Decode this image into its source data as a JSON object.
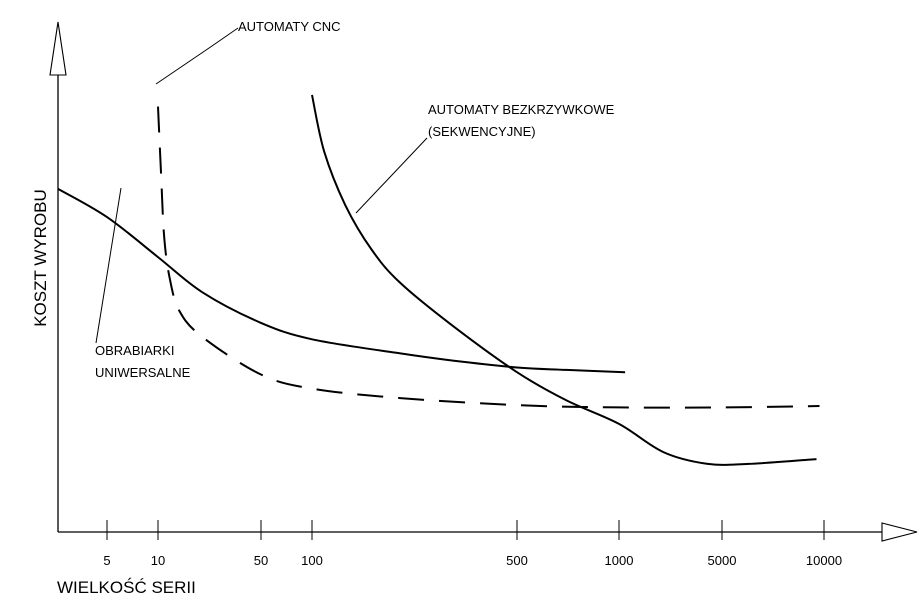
{
  "chart_data": {
    "type": "line",
    "xlabel": "WIELKOŚĆ SERII",
    "ylabel": "KOSZT WYROBU",
    "x_ticks": [
      "5",
      "10",
      "50",
      "100",
      "500",
      "1000",
      "5000",
      "10000"
    ],
    "x_tick_values": [
      5,
      10,
      50,
      100,
      500,
      1000,
      5000,
      10000
    ],
    "series": [
      {
        "name": "OBRABIARKI UNIWERSALNE",
        "style": "solid",
        "x": [
          2.5,
          5,
          10,
          20,
          50,
          100,
          200,
          300,
          500,
          700,
          1100
        ],
        "y": [
          0.73,
          0.67,
          0.585,
          0.51,
          0.445,
          0.41,
          0.38,
          0.365,
          0.35,
          0.345,
          0.34
        ]
      },
      {
        "name": "AUTOMATY CNC",
        "style": "dashed",
        "x": [
          10,
          10.5,
          11,
          12,
          14,
          20,
          50,
          100,
          200,
          500,
          1000,
          5000,
          9700
        ],
        "y": [
          0.905,
          0.76,
          0.63,
          0.54,
          0.47,
          0.415,
          0.335,
          0.305,
          0.285,
          0.27,
          0.265,
          0.265,
          0.268
        ]
      },
      {
        "name": "AUTOMATY BEZKRZYWKOWE (SEKWENCYJNE)",
        "style": "solid",
        "x": [
          100,
          110,
          130,
          160,
          200,
          300,
          500,
          700,
          1000,
          2000,
          4000,
          6000,
          9500
        ],
        "y": [
          0.93,
          0.81,
          0.695,
          0.6,
          0.53,
          0.44,
          0.34,
          0.28,
          0.23,
          0.17,
          0.145,
          0.145,
          0.155
        ]
      }
    ],
    "annotations": [
      {
        "series": "AUTOMATY CNC",
        "text": "AUTOMATY CNC"
      },
      {
        "series": "AUTOMATY BEZKRZYWKOWE (SEKWENCYJNE)",
        "lines": [
          "AUTOMATY BEZKRZYWKOWE",
          "(SEKWENCYJNE)"
        ]
      },
      {
        "series": "OBRABIARKI UNIWERSALNE",
        "lines": [
          "OBRABIARKI",
          "UNIWERSALNE"
        ]
      }
    ],
    "x_scale": "log",
    "grid": false,
    "legend": "none"
  }
}
